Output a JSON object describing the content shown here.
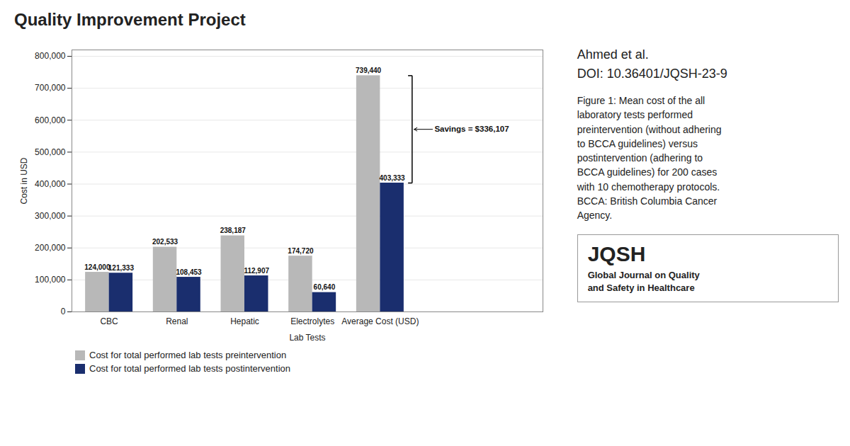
{
  "chart_data": {
    "type": "bar",
    "title": "Quality Improvement Project",
    "subtitle": "Ahmed et al.\nDOI: 10.36401/JQSH-23-9",
    "caption": "Figure 1: Mean cost of the all\nlaboratory tests performed\npreintervention (without adhering\nto BCCA guidelines) versus\npostintervention (adhering to\nBCCA guidelines) for 200 cases\nwith 10 chemotherapy protocols.\nBCCA: British Columbia Cancer\nAgency.",
    "annotations": [
      "Savings = $336,107",
      "JQSH",
      "Global Journal on Quality\nand Safety in Healthcare"
    ],
    "xlabel": "Lab Tests",
    "ylabel": "Cost in USD",
    "categories": [
      "CBC",
      "Renal",
      "Hepatic",
      "Electrolytes",
      "Average Cost (USD)"
    ],
    "series": [
      {
        "name": "Cost for total performed lab tests preintervention",
        "color": "#b8b8b8",
        "values": [
          124000,
          202533,
          238187,
          174720,
          739440
        ],
        "value_labels": [
          "124,000",
          "202,533",
          "238,187",
          "174,720",
          "739,440"
        ]
      },
      {
        "name": "Cost for total performed lab tests postintervention",
        "color": "#1a2e6e",
        "values": [
          121333,
          108453,
          112907,
          60640,
          403333
        ],
        "value_labels": [
          "121,333",
          "108,453",
          "112,907",
          "60,640",
          "403,333"
        ]
      }
    ],
    "ylim": [
      0,
      820000
    ],
    "yticks": [
      0,
      {
        "value": 100000,
        "label": "100,000"
      },
      {
        "value": 200000,
        "label": "200,000"
      },
      {
        "value": 300000,
        "label": "300,000"
      },
      {
        "value": 400000,
        "label": "400,000"
      },
      {
        "value": 500000,
        "label": "500,000"
      },
      {
        "value": 600000,
        "label": "600,000"
      },
      {
        "value": 700000,
        "label": "700,000"
      },
      {
        "value": 800000,
        "label": "800,000"
      }
    ],
    "grid": true,
    "data_labels": true,
    "legend": "bottom"
  }
}
